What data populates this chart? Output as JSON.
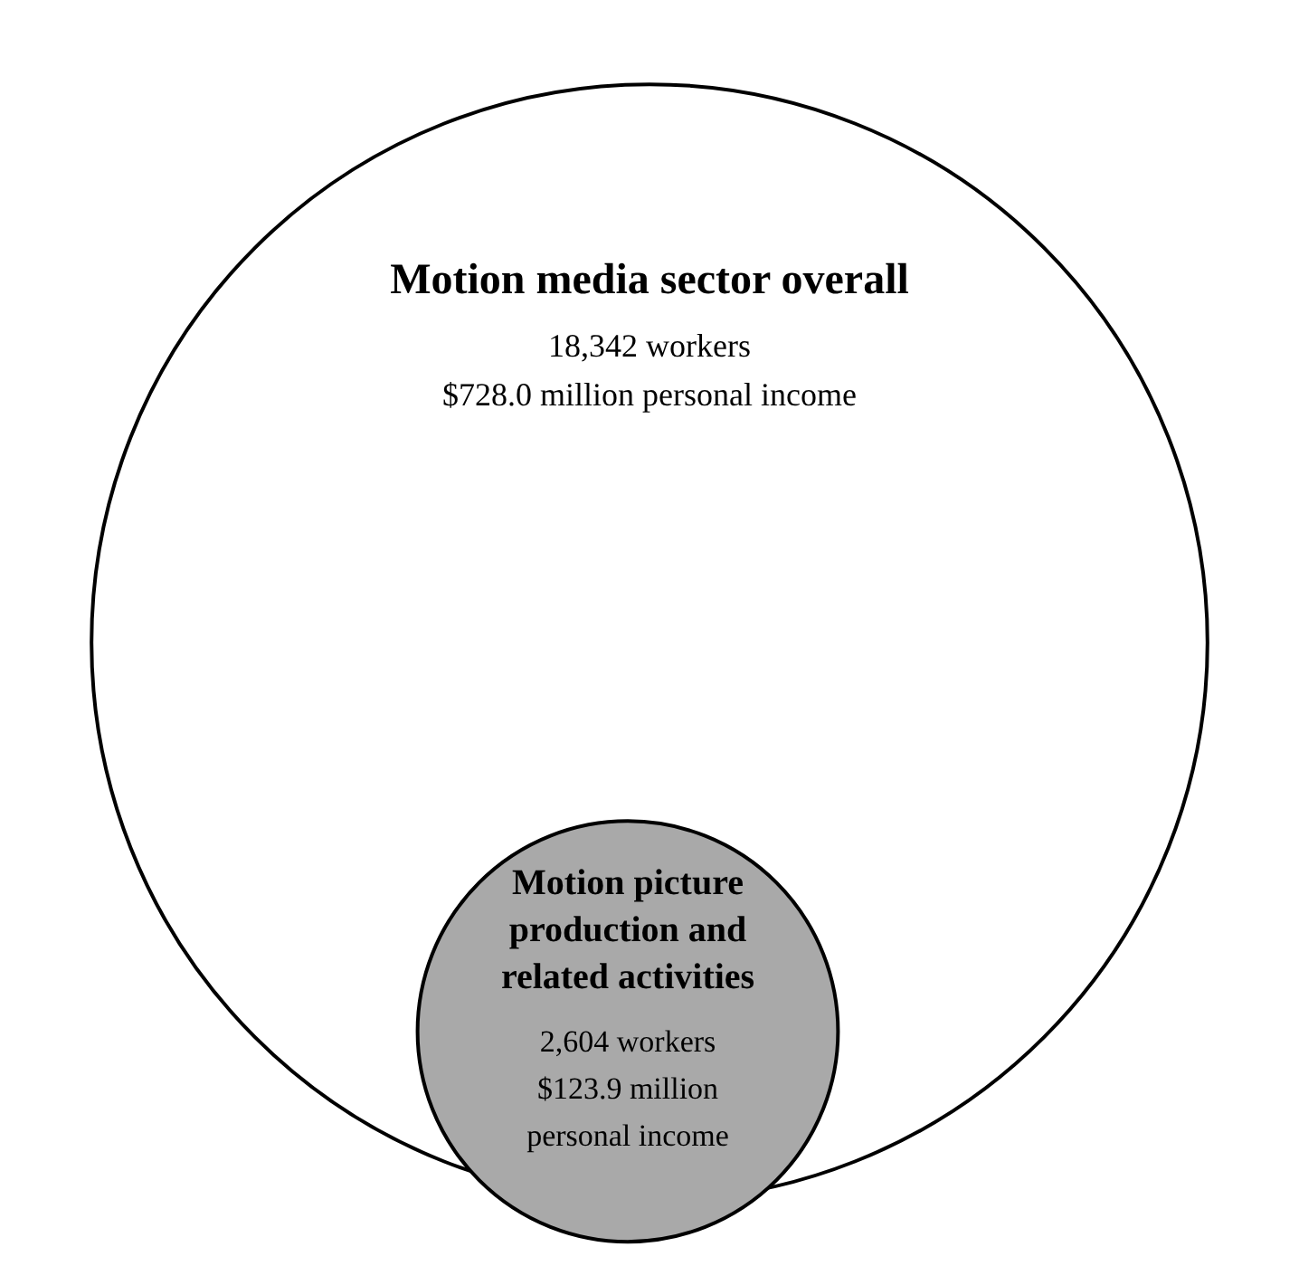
{
  "chart_data": {
    "type": "other",
    "categories": [
      "Motion media sector overall",
      "Motion picture production and related activities"
    ],
    "values": [
      18342,
      2604
    ],
    "value_labels": [
      "18,342 workers",
      "2,604 workers"
    ],
    "annotations": [
      "$728.0 million personal income",
      "$123.9 million personal income"
    ],
    "colors": [
      "#ffffff",
      "#a9a9a9"
    ]
  }
}
